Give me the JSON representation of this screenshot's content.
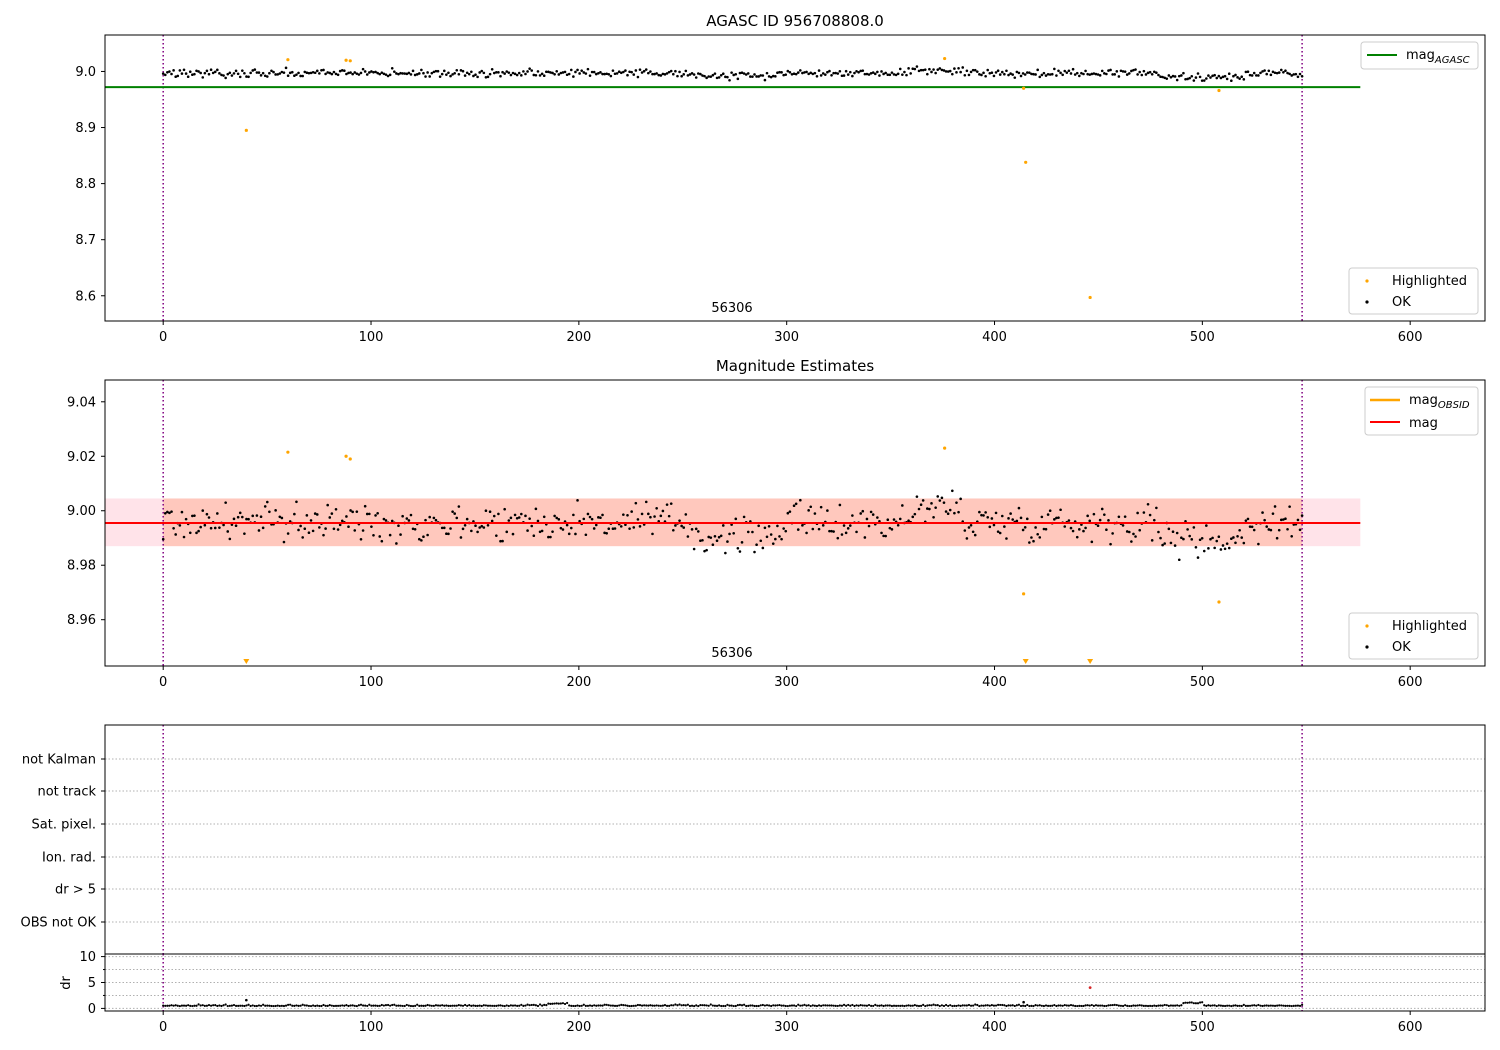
{
  "chart_data": [
    {
      "type": "scatter",
      "title": "AGASC ID 956708808.0",
      "xlim": [
        -28,
        636
      ],
      "ylim": [
        8.555,
        9.065
      ],
      "xticks": [
        0,
        100,
        200,
        300,
        400,
        500,
        600
      ],
      "yticks": [
        8.6,
        8.7,
        8.8,
        8.9,
        9.0
      ],
      "xtick_labels": [
        "0",
        "100",
        "200",
        "300",
        "400",
        "500",
        "600"
      ],
      "ytick_labels": [
        "8.6",
        "8.7",
        "8.8",
        "8.9",
        "9.0"
      ],
      "annotation": "56306",
      "grid": false,
      "vlines": [
        0,
        548
      ],
      "hline": {
        "name": "mag_AGASC",
        "value": 8.972,
        "x_range": [
          -28,
          576
        ],
        "color": "#008000"
      },
      "series": [
        {
          "name": "Highlighted",
          "color": "#ffa500",
          "points": [
            [
              40,
              8.895
            ],
            [
              60,
              9.021
            ],
            [
              88,
              9.02
            ],
            [
              90,
              9.019
            ],
            [
              376,
              9.023
            ],
            [
              414,
              8.97
            ],
            [
              415,
              8.838
            ],
            [
              446,
              8.597
            ],
            [
              508,
              8.966
            ]
          ]
        },
        {
          "name": "OK",
          "color": "#000000",
          "n_points": 548,
          "x_range": [
            0,
            548
          ],
          "baseline": 8.997,
          "spread": 0.011
        }
      ],
      "legend": {
        "upper_right": [
          {
            "label": "mag",
            "sub": "AGASC",
            "color": "#008000"
          }
        ],
        "lower_right": [
          {
            "label": "Highlighted",
            "color": "#ffa500"
          },
          {
            "label": "OK",
            "color": "#000000"
          }
        ]
      }
    },
    {
      "type": "scatter",
      "title": "Magnitude Estimates",
      "xlim": [
        -28,
        636
      ],
      "ylim": [
        8.943,
        9.048
      ],
      "xticks": [
        0,
        100,
        200,
        300,
        400,
        500,
        600
      ],
      "yticks": [
        8.96,
        8.98,
        9.0,
        9.02,
        9.04
      ],
      "xtick_labels": [
        "0",
        "100",
        "200",
        "300",
        "400",
        "500",
        "600"
      ],
      "ytick_labels": [
        "8.96",
        "8.98",
        "9.00",
        "9.02",
        "9.04"
      ],
      "annotation": "56306",
      "grid": false,
      "vlines": [
        0,
        548
      ],
      "hline": {
        "name": "mag",
        "value": 8.9955,
        "x_range": [
          -28,
          576
        ],
        "color": "#ff0000"
      },
      "bands": [
        {
          "y0": 8.987,
          "y1": 9.0045,
          "x_range": [
            -28,
            576
          ],
          "color": "#ffb0c0",
          "opacity": 0.35
        },
        {
          "y0": 8.987,
          "y1": 9.0045,
          "x_range": [
            0,
            548
          ],
          "color": "#ffa07a",
          "opacity": 0.4
        }
      ],
      "series": [
        {
          "name": "Highlighted",
          "color": "#ffa500",
          "points": [
            [
              60,
              9.0215
            ],
            [
              88,
              9.02
            ],
            [
              90,
              9.019
            ],
            [
              376,
              9.023
            ],
            [
              414,
              8.9695
            ],
            [
              508,
              8.9665
            ]
          ]
        },
        {
          "name": "Highlighted (below range)",
          "color": "#ffa500",
          "marker": "triangle-down",
          "x": [
            40,
            415,
            446
          ]
        },
        {
          "name": "OK",
          "color": "#000000",
          "n_points": 548,
          "x_range": [
            0,
            548
          ],
          "baseline": 8.9958,
          "spread": 0.0105
        }
      ],
      "legend": {
        "upper_right": [
          {
            "label": "mag",
            "sub": "OBSID",
            "color": "#ffa500"
          },
          {
            "label": "mag",
            "sub": "",
            "color": "#ff0000"
          }
        ],
        "lower_right": [
          {
            "label": "Highlighted",
            "color": "#ffa500"
          },
          {
            "label": "OK",
            "color": "#000000"
          }
        ]
      }
    },
    {
      "type": "scatter",
      "title": "",
      "categories": [
        "not Kalman",
        "not track",
        "Sat. pixel.",
        "Ion. rad.",
        "dr > 5",
        "OBS not OK"
      ],
      "grid": true,
      "vlines": [
        0,
        548
      ],
      "xlim": [
        -28,
        636
      ]
    },
    {
      "type": "scatter",
      "title": "",
      "ylabel": "dr",
      "xlim": [
        -28,
        636
      ],
      "ylim": [
        -0.5,
        10.5
      ],
      "xticks": [
        0,
        100,
        200,
        300,
        400,
        500,
        600
      ],
      "yticks": [
        0,
        5,
        10
      ],
      "xtick_labels": [
        "0",
        "100",
        "200",
        "300",
        "400",
        "500",
        "600"
      ],
      "ytick_labels": [
        "0",
        "5",
        "10"
      ],
      "grid": true,
      "vlines": [
        0,
        548
      ],
      "series": [
        {
          "name": "dr",
          "color": "#000000",
          "n_points": 548,
          "x_range": [
            0,
            548
          ],
          "baseline": 0.45,
          "spread": 0.35,
          "outliers": [
            [
              40,
              1.6
            ],
            [
              414,
              1.2
            ]
          ]
        },
        {
          "name": "dr highlighted",
          "color": "#d62728",
          "points": [
            [
              446,
              4.0
            ]
          ]
        }
      ]
    }
  ]
}
